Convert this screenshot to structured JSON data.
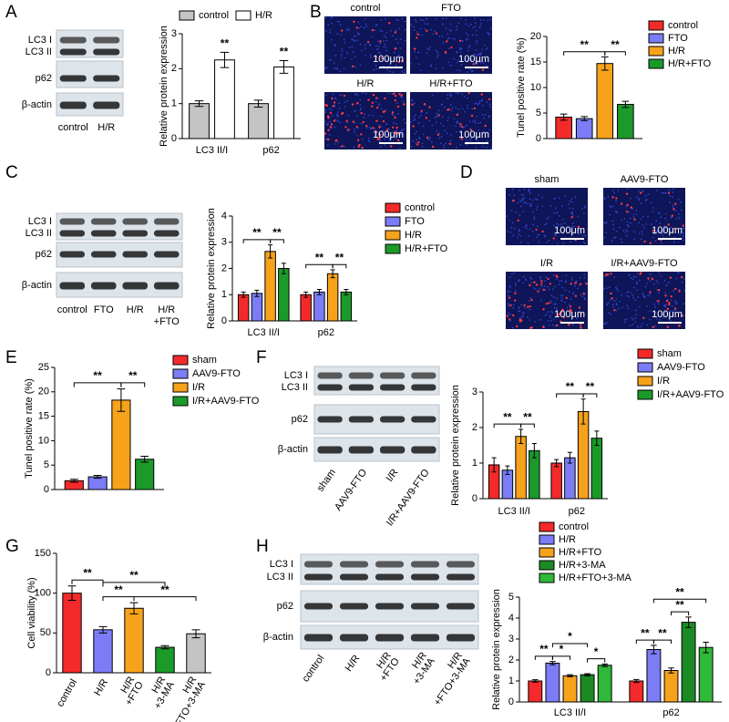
{
  "panels": [
    "A",
    "B",
    "C",
    "D",
    "E",
    "F",
    "G",
    "H"
  ],
  "blots": [
    {
      "rows": [
        "LC3 I",
        "LC3 II",
        "p62",
        "β-actin"
      ],
      "lanes": [
        "control",
        "H/R"
      ]
    },
    {
      "rows": [
        "LC3 I",
        "LC3 II",
        "p62",
        "β-actin"
      ],
      "lanes": [
        "control",
        "FTO",
        "H/R",
        [
          "H/R",
          "+FTO"
        ]
      ]
    },
    {
      "rows": [
        "LC3 I",
        "LC3 II",
        "p62",
        "β-actin"
      ],
      "lanes": [
        "sham",
        "AAV9-FTO",
        "I/R",
        "I/R+AAV9-FTO"
      ]
    },
    {
      "rows": [
        "LC3 I",
        "LC3 II",
        "p62",
        "β-actin"
      ],
      "lanes": [
        "control",
        "H/R",
        [
          "H/R",
          "+FTO"
        ],
        [
          "H/R",
          "+3-MA"
        ],
        [
          "H/R",
          "+FTO+3-MA"
        ]
      ]
    }
  ],
  "images": [
    {
      "labels": [
        "control",
        "FTO",
        "H/R",
        "H/R+FTO"
      ],
      "scale_bar": "100μm"
    },
    {
      "labels": [
        "sham",
        "AAV9-FTO",
        "I/R",
        "I/R+AAV9-FTO"
      ],
      "scale_bar": "100μm"
    }
  ],
  "chart_data": [
    {
      "type": "bar",
      "ylabel": "Relative protein expression",
      "categories": [
        "LC3 II/I",
        "p62"
      ],
      "series": [
        {
          "name": "control",
          "color": "#c4c4c4",
          "values": [
            1.0,
            1.0
          ],
          "errors": [
            0.08,
            0.1
          ]
        },
        {
          "name": "H/R",
          "color": "#ffffff",
          "values": [
            2.25,
            2.05
          ],
          "errors": [
            0.22,
            0.18
          ]
        }
      ],
      "ylim": [
        0,
        3
      ],
      "yticks": [
        0,
        1,
        2,
        3
      ],
      "brackets": [
        {
          "label": "**",
          "a": [
            0,
            1
          ],
          "b": [
            0,
            1
          ]
        },
        {
          "label": "**",
          "a": [
            1,
            1
          ],
          "b": [
            1,
            1
          ]
        }
      ]
    },
    {
      "type": "bar",
      "ylabel": "Tunel positive rate (%)",
      "categories": [
        null
      ],
      "series": [
        {
          "name": "control",
          "color": "#f42a2a",
          "values": [
            4.2
          ],
          "errors": [
            0.6
          ]
        },
        {
          "name": "FTO",
          "color": "#7b7cf6",
          "values": [
            3.9
          ],
          "errors": [
            0.4
          ]
        },
        {
          "name": "H/R",
          "color": "#f7a21b",
          "values": [
            14.7
          ],
          "errors": [
            1.3
          ]
        },
        {
          "name": "H/R+FTO",
          "color": "#1b9a2a",
          "values": [
            6.7
          ],
          "errors": [
            0.6
          ]
        }
      ],
      "ylim": [
        0,
        20
      ],
      "yticks": [
        0,
        5,
        10,
        15,
        20
      ],
      "brackets": [
        {
          "label": "**",
          "a": [
            0,
            0
          ],
          "b": [
            0,
            2
          ]
        },
        {
          "label": "**",
          "a": [
            0,
            2
          ],
          "b": [
            0,
            3
          ]
        }
      ]
    },
    {
      "type": "bar",
      "ylabel": "Relative protein expression",
      "categories": [
        "LC3 II/I",
        "p62"
      ],
      "series": [
        {
          "name": "control",
          "color": "#f42a2a",
          "values": [
            1.0,
            1.0
          ],
          "errors": [
            0.1,
            0.1
          ]
        },
        {
          "name": "FTO",
          "color": "#7b7cf6",
          "values": [
            1.05,
            1.1
          ],
          "errors": [
            0.12,
            0.1
          ]
        },
        {
          "name": "H/R",
          "color": "#f7a21b",
          "values": [
            2.65,
            1.8
          ],
          "errors": [
            0.25,
            0.15
          ]
        },
        {
          "name": "H/R+FTO",
          "color": "#1b9a2a",
          "values": [
            2.0,
            1.1
          ],
          "errors": [
            0.2,
            0.1
          ]
        }
      ],
      "ylim": [
        0,
        4
      ],
      "yticks": [
        0,
        1,
        2,
        3,
        4
      ],
      "brackets": [
        {
          "label": "**",
          "a": [
            0,
            0
          ],
          "b": [
            0,
            2
          ]
        },
        {
          "label": "**",
          "a": [
            0,
            2
          ],
          "b": [
            0,
            3
          ]
        },
        {
          "label": "**",
          "a": [
            1,
            0
          ],
          "b": [
            1,
            2
          ]
        },
        {
          "label": "**",
          "a": [
            1,
            2
          ],
          "b": [
            1,
            3
          ]
        }
      ]
    },
    {
      "type": "bar",
      "ylabel": "Tunel positive rate (%)",
      "categories": [
        null
      ],
      "series": [
        {
          "name": "sham",
          "color": "#f42a2a",
          "values": [
            1.8
          ],
          "errors": [
            0.3
          ]
        },
        {
          "name": "AAV9-FTO",
          "color": "#7b7cf6",
          "values": [
            2.6
          ],
          "errors": [
            0.3
          ]
        },
        {
          "name": "I/R",
          "color": "#f7a21b",
          "values": [
            18.3
          ],
          "errors": [
            2.3
          ]
        },
        {
          "name": "I/R+AAV9-FTO",
          "color": "#1b9a2a",
          "values": [
            6.2
          ],
          "errors": [
            0.6
          ]
        }
      ],
      "ylim": [
        0,
        25
      ],
      "yticks": [
        0,
        5,
        10,
        15,
        20,
        25
      ],
      "brackets": [
        {
          "label": "**",
          "a": [
            0,
            0
          ],
          "b": [
            0,
            2
          ]
        },
        {
          "label": "**",
          "a": [
            0,
            2
          ],
          "b": [
            0,
            3
          ]
        }
      ]
    },
    {
      "type": "bar",
      "ylabel": "Relative protein expression",
      "categories": [
        "LC3 II/I",
        "p62"
      ],
      "series": [
        {
          "name": "sham",
          "color": "#f42a2a",
          "values": [
            0.95,
            1.0
          ],
          "errors": [
            0.2,
            0.1
          ]
        },
        {
          "name": "AAV9-FTO",
          "color": "#7b7cf6",
          "values": [
            0.8,
            1.15
          ],
          "errors": [
            0.12,
            0.15
          ]
        },
        {
          "name": "I/R",
          "color": "#f7a21b",
          "values": [
            1.75,
            2.45
          ],
          "errors": [
            0.2,
            0.35
          ]
        },
        {
          "name": "I/R+AAV9-FTO",
          "color": "#1b9a2a",
          "values": [
            1.35,
            1.7
          ],
          "errors": [
            0.2,
            0.2
          ]
        }
      ],
      "ylim": [
        0,
        3
      ],
      "yticks": [
        0,
        1,
        2,
        3
      ],
      "brackets": [
        {
          "label": "**",
          "a": [
            0,
            0
          ],
          "b": [
            0,
            2
          ]
        },
        {
          "label": "**",
          "a": [
            0,
            2
          ],
          "b": [
            0,
            3
          ]
        },
        {
          "label": "**",
          "a": [
            1,
            0
          ],
          "b": [
            1,
            2
          ]
        },
        {
          "label": "**",
          "a": [
            1,
            2
          ],
          "b": [
            1,
            3
          ]
        }
      ]
    },
    {
      "type": "bar",
      "ylabel": "Cell viability (%)",
      "categories": [
        "control",
        "H/R",
        [
          "H/R",
          "+FTO"
        ],
        [
          "H/R",
          "+3-MA"
        ],
        [
          "H/R",
          "+FTO+3-MA"
        ]
      ],
      "series": [
        {
          "colors": [
            "#f42a2a",
            "#7b7cf6",
            "#f7a21b",
            "#1b9a2a",
            "#c4c4c4"
          ],
          "values": [
            100,
            54,
            81,
            32,
            49
          ],
          "errors": [
            9,
            4,
            7,
            2,
            5
          ]
        }
      ],
      "ylim": [
        0,
        150
      ],
      "yticks": [
        0,
        50,
        100,
        150
      ],
      "brackets": [
        {
          "label": "**",
          "a": [
            0,
            0
          ],
          "b": [
            1,
            0
          ]
        },
        {
          "label": "**",
          "a": [
            1,
            0
          ],
          "b": [
            2,
            0
          ]
        },
        {
          "label": "**",
          "a": [
            2,
            0
          ],
          "b": [
            4,
            0
          ]
        },
        {
          "label": "**",
          "a": [
            1,
            0
          ],
          "b": [
            3,
            0
          ]
        }
      ]
    },
    {
      "type": "bar",
      "ylabel": "Relative protein expression",
      "categories": [
        "LC3 II/I",
        "p62"
      ],
      "series": [
        {
          "name": "control",
          "color": "#f42a2a",
          "values": [
            1.0,
            1.0
          ],
          "errors": [
            0.06,
            0.07
          ]
        },
        {
          "name": "H/R",
          "color": "#7b7cf6",
          "values": [
            1.85,
            2.5
          ],
          "errors": [
            0.08,
            0.2
          ]
        },
        {
          "name": "H/R+FTO",
          "color": "#f7a21b",
          "values": [
            1.25,
            1.5
          ],
          "errors": [
            0.05,
            0.12
          ]
        },
        {
          "name": "H/R+3-MA",
          "color": "#1b8a24",
          "values": [
            1.3,
            3.8
          ],
          "errors": [
            0.05,
            0.25
          ]
        },
        {
          "name": "H/R+FTO+3-MA",
          "color": "#2fb83a",
          "values": [
            1.75,
            2.6
          ],
          "errors": [
            0.06,
            0.25
          ]
        }
      ],
      "ylim": [
        0,
        5
      ],
      "yticks": [
        0,
        1,
        2,
        3,
        4,
        5
      ],
      "brackets": [
        {
          "label": "**",
          "a": [
            0,
            0
          ],
          "b": [
            0,
            1
          ]
        },
        {
          "label": "*",
          "a": [
            0,
            1
          ],
          "b": [
            0,
            2
          ]
        },
        {
          "label": "*",
          "a": [
            0,
            3
          ],
          "b": [
            0,
            4
          ]
        },
        {
          "label": "*",
          "a": [
            0,
            1
          ],
          "b": [
            0,
            3
          ]
        },
        {
          "label": "**",
          "a": [
            1,
            0
          ],
          "b": [
            1,
            1
          ]
        },
        {
          "label": "**",
          "a": [
            1,
            1
          ],
          "b": [
            1,
            2
          ]
        },
        {
          "label": "**",
          "a": [
            1,
            2
          ],
          "b": [
            1,
            3
          ]
        },
        {
          "label": "**",
          "a": [
            1,
            1
          ],
          "b": [
            1,
            4
          ]
        }
      ]
    }
  ]
}
